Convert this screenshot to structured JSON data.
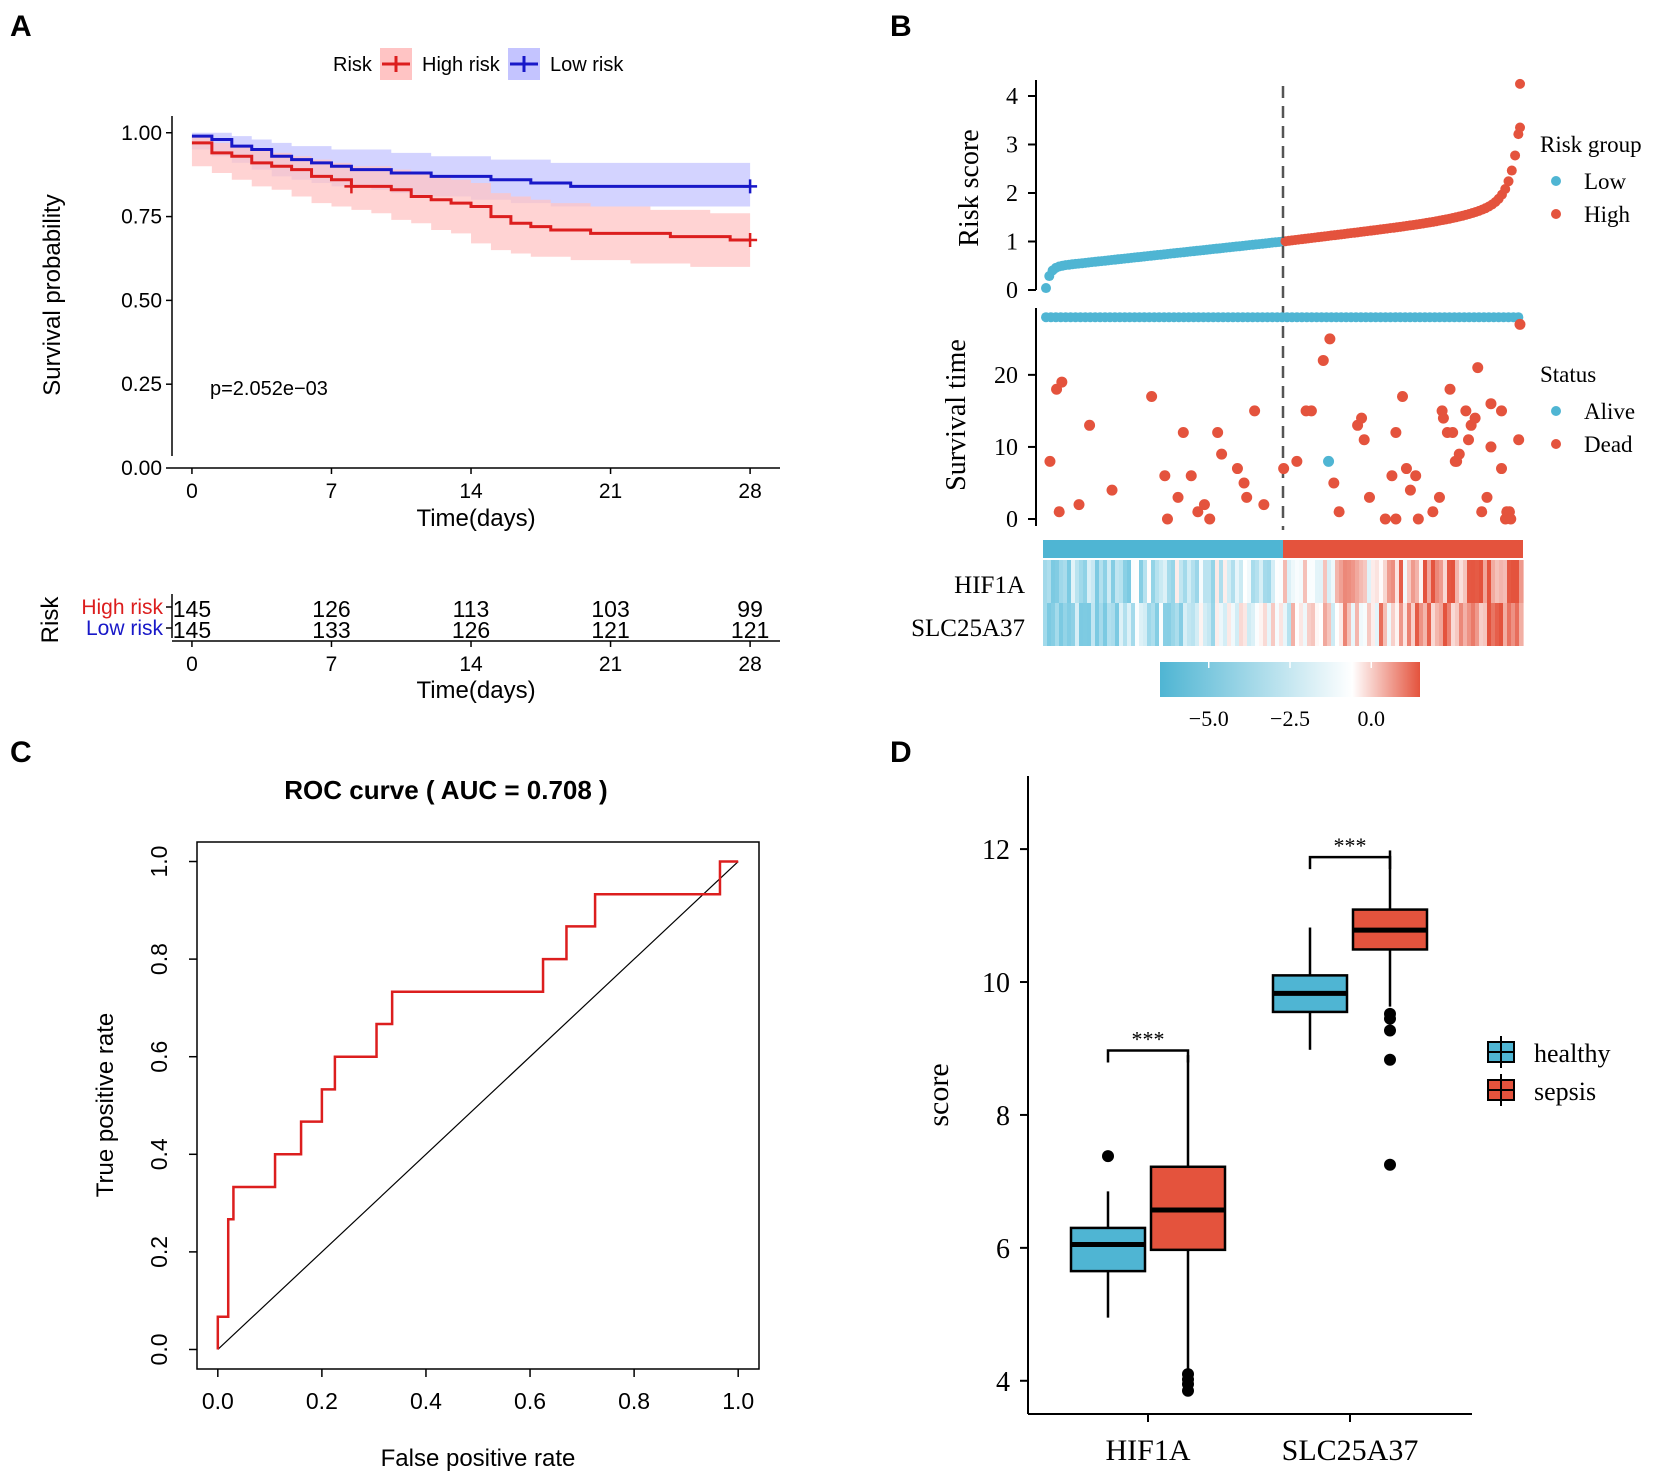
{
  "panels": {
    "A": "A",
    "B": "B",
    "C": "C",
    "D": "D"
  },
  "colors": {
    "high": "#dc1e1e",
    "low": "#1818c8",
    "teal": "#4fb5d3",
    "orange": "#e4533d",
    "black": "#000000"
  },
  "chart_data": [
    {
      "type": "line",
      "panel": "A",
      "subtype": "kaplan-meier",
      "xlabel": "Time(days)",
      "ylabel": "Survival probability",
      "xlim": [
        -1,
        29.5
      ],
      "ylim": [
        0,
        1.05
      ],
      "xticks": [
        "0",
        "7",
        "14",
        "21",
        "28"
      ],
      "yticks": [
        "0.00",
        "0.25",
        "0.50",
        "0.75",
        "1.00"
      ],
      "legend": {
        "title": "Risk",
        "entries": [
          "High risk",
          "Low risk"
        ]
      },
      "pvalue": "p=2.052e−03",
      "series": [
        {
          "name": "High risk",
          "color": "#dc1e1e",
          "x": [
            0,
            1,
            2,
            3,
            4,
            5,
            6,
            7,
            8,
            9,
            10,
            11,
            12,
            13,
            14,
            15,
            16,
            17,
            18,
            19,
            20,
            21,
            22,
            23,
            24,
            25,
            26,
            27,
            28
          ],
          "y": [
            0.97,
            0.94,
            0.93,
            0.91,
            0.9,
            0.89,
            0.87,
            0.86,
            0.84,
            0.84,
            0.83,
            0.81,
            0.8,
            0.79,
            0.78,
            0.75,
            0.73,
            0.72,
            0.71,
            0.71,
            0.7,
            0.7,
            0.7,
            0.7,
            0.69,
            0.69,
            0.69,
            0.68,
            0.68
          ],
          "lower": [
            0.94,
            0.9,
            0.88,
            0.86,
            0.84,
            0.83,
            0.81,
            0.79,
            0.78,
            0.77,
            0.76,
            0.74,
            0.73,
            0.71,
            0.7,
            0.67,
            0.65,
            0.64,
            0.63,
            0.63,
            0.62,
            0.62,
            0.62,
            0.61,
            0.61,
            0.61,
            0.6,
            0.6,
            0.6
          ],
          "upper": [
            0.99,
            0.97,
            0.96,
            0.95,
            0.94,
            0.93,
            0.92,
            0.91,
            0.9,
            0.9,
            0.89,
            0.88,
            0.87,
            0.86,
            0.85,
            0.82,
            0.81,
            0.8,
            0.79,
            0.79,
            0.78,
            0.78,
            0.78,
            0.77,
            0.77,
            0.77,
            0.76,
            0.76,
            0.76
          ]
        },
        {
          "name": "Low risk",
          "color": "#1818c8",
          "x": [
            0,
            1,
            2,
            3,
            4,
            5,
            6,
            7,
            8,
            9,
            10,
            11,
            12,
            13,
            14,
            15,
            16,
            17,
            18,
            19,
            20,
            21,
            22,
            23,
            24,
            25,
            26,
            27,
            28
          ],
          "y": [
            0.99,
            0.98,
            0.96,
            0.95,
            0.93,
            0.92,
            0.91,
            0.9,
            0.89,
            0.89,
            0.88,
            0.88,
            0.87,
            0.87,
            0.87,
            0.86,
            0.86,
            0.85,
            0.85,
            0.84,
            0.84,
            0.84,
            0.84,
            0.84,
            0.84,
            0.84,
            0.84,
            0.84,
            0.84
          ],
          "lower": [
            0.97,
            0.95,
            0.93,
            0.91,
            0.89,
            0.87,
            0.86,
            0.85,
            0.84,
            0.84,
            0.83,
            0.82,
            0.81,
            0.81,
            0.81,
            0.8,
            0.8,
            0.79,
            0.79,
            0.78,
            0.78,
            0.78,
            0.78,
            0.78,
            0.78,
            0.78,
            0.78,
            0.78,
            0.78
          ],
          "upper": [
            1.0,
            1.0,
            0.99,
            0.98,
            0.97,
            0.96,
            0.96,
            0.95,
            0.95,
            0.95,
            0.94,
            0.94,
            0.93,
            0.93,
            0.93,
            0.92,
            0.92,
            0.92,
            0.91,
            0.91,
            0.91,
            0.91,
            0.91,
            0.91,
            0.91,
            0.91,
            0.91,
            0.91,
            0.91
          ]
        }
      ],
      "censor_marks": [
        {
          "series": "High risk",
          "x": [
            8,
            28
          ],
          "y": [
            0.84,
            0.68
          ]
        },
        {
          "series": "Low risk",
          "x": [
            28
          ],
          "y": [
            0.84
          ]
        }
      ],
      "risk_table": {
        "title": "Risk",
        "xlabel": "Time(days)",
        "times": [
          "0",
          "7",
          "14",
          "21",
          "28"
        ],
        "rows": [
          {
            "label": "High risk",
            "values": [
              "145",
              "126",
              "113",
              "103",
              "99"
            ]
          },
          {
            "label": "Low risk",
            "values": [
              "145",
              "133",
              "126",
              "121",
              "121"
            ]
          }
        ]
      }
    },
    {
      "type": "scatter",
      "panel": "B",
      "subtype": "risk-score-distribution",
      "ylabel": "Risk score",
      "yticks": [
        "0",
        "1",
        "2",
        "3",
        "4"
      ],
      "ylim": [
        0,
        4.3
      ],
      "cutoff": 1.0,
      "n_patients": 290,
      "low_count": 145,
      "legend": {
        "title": "Risk group",
        "entries": [
          "Low",
          "High"
        ]
      }
    },
    {
      "type": "scatter",
      "panel": "B",
      "subtype": "survival-status",
      "ylabel": "Survival time",
      "yticks": [
        "0",
        "10",
        "20"
      ],
      "ylim": [
        0,
        29
      ],
      "legend": {
        "title": "Status",
        "entries": [
          "Alive",
          "Dead"
        ]
      },
      "alive_time": 28,
      "dead_points": [
        [
          3,
          8
        ],
        [
          8,
          18
        ],
        [
          12,
          19
        ],
        [
          10,
          1
        ],
        [
          25,
          2
        ],
        [
          33,
          13
        ],
        [
          50,
          4
        ],
        [
          80,
          17
        ],
        [
          90,
          6
        ],
        [
          92,
          0
        ],
        [
          100,
          3
        ],
        [
          104,
          12
        ],
        [
          110,
          6
        ],
        [
          115,
          1
        ],
        [
          120,
          2
        ],
        [
          124,
          0
        ],
        [
          130,
          12
        ],
        [
          133,
          9
        ],
        [
          145,
          7
        ],
        [
          150,
          5
        ],
        [
          152,
          3
        ],
        [
          158,
          15
        ],
        [
          165,
          2
        ],
        [
          180,
          7
        ],
        [
          190,
          8
        ],
        [
          197,
          15
        ],
        [
          201,
          15
        ],
        [
          210,
          22
        ],
        [
          215,
          25
        ],
        [
          218,
          5
        ],
        [
          222,
          1
        ],
        [
          236,
          13
        ],
        [
          239,
          14
        ],
        [
          241,
          11
        ],
        [
          245,
          3
        ],
        [
          257,
          0
        ],
        [
          262,
          6
        ],
        [
          265,
          12
        ],
        [
          265,
          0
        ],
        [
          270,
          17
        ],
        [
          273,
          7
        ],
        [
          276,
          4
        ],
        [
          280,
          6
        ],
        [
          282,
          0
        ],
        [
          293,
          1
        ],
        [
          298,
          3
        ],
        [
          300,
          15
        ],
        [
          301,
          14
        ],
        [
          304,
          12
        ],
        [
          306,
          18
        ],
        [
          308,
          12
        ],
        [
          310,
          8
        ],
        [
          311,
          8
        ],
        [
          313,
          9
        ],
        [
          318,
          15
        ],
        [
          320,
          11
        ],
        [
          322,
          13
        ],
        [
          325,
          14
        ],
        [
          327,
          21
        ],
        [
          330,
          1
        ],
        [
          334,
          3
        ],
        [
          337,
          10
        ],
        [
          337,
          16
        ],
        [
          345,
          7
        ],
        [
          345,
          15
        ],
        [
          348,
          0
        ],
        [
          349,
          1
        ],
        [
          351,
          1
        ],
        [
          352,
          0
        ],
        [
          358,
          11
        ],
        [
          359,
          27
        ]
      ],
      "alive_points": [
        [
          214,
          8
        ]
      ]
    },
    {
      "type": "heatmap",
      "panel": "B",
      "genes": [
        "HIF1A",
        "SLC25A37"
      ],
      "legend_ticks": [
        "−5.0",
        "−2.5",
        "0.0"
      ],
      "legend_range": [
        -6.5,
        1.5
      ]
    },
    {
      "type": "line",
      "panel": "C",
      "subtype": "roc",
      "title": "ROC curve ( AUC =  0.708 )",
      "xlabel": "False positive rate",
      "ylabel": "True positive rate",
      "xlim": [
        -0.04,
        1.04
      ],
      "ylim": [
        -0.04,
        1.04
      ],
      "xticks": [
        "0.0",
        "0.2",
        "0.4",
        "0.6",
        "0.8",
        "1.0"
      ],
      "yticks": [
        "0.0",
        "0.2",
        "0.4",
        "0.6",
        "0.8",
        "1.0"
      ],
      "auc": 0.708,
      "roc_points": [
        [
          0,
          0
        ],
        [
          0,
          0.067
        ],
        [
          0.02,
          0.067
        ],
        [
          0.02,
          0.267
        ],
        [
          0.03,
          0.267
        ],
        [
          0.03,
          0.333
        ],
        [
          0.11,
          0.333
        ],
        [
          0.11,
          0.4
        ],
        [
          0.16,
          0.4
        ],
        [
          0.16,
          0.467
        ],
        [
          0.2,
          0.467
        ],
        [
          0.2,
          0.533
        ],
        [
          0.225,
          0.533
        ],
        [
          0.225,
          0.6
        ],
        [
          0.305,
          0.6
        ],
        [
          0.305,
          0.667
        ],
        [
          0.335,
          0.667
        ],
        [
          0.335,
          0.733
        ],
        [
          0.625,
          0.733
        ],
        [
          0.625,
          0.8
        ],
        [
          0.67,
          0.8
        ],
        [
          0.67,
          0.867
        ],
        [
          0.725,
          0.867
        ],
        [
          0.725,
          0.933
        ],
        [
          0.965,
          0.933
        ],
        [
          0.965,
          1.0
        ],
        [
          1.0,
          1.0
        ]
      ],
      "diagonal": [
        [
          0,
          0
        ],
        [
          1,
          1
        ]
      ]
    },
    {
      "type": "bar",
      "panel": "D",
      "subtype": "boxplot",
      "ylabel": "score",
      "categories": [
        "HIF1A",
        "SLC25A37"
      ],
      "ylim": [
        3.5,
        13.1
      ],
      "yticks": [
        "4",
        "6",
        "8",
        "10",
        "12"
      ],
      "legend": {
        "entries": [
          "healthy",
          "sepsis"
        ]
      },
      "significance": [
        "***",
        "***"
      ],
      "series": [
        {
          "name": "healthy",
          "color": "#4fb5d3",
          "boxes": [
            {
              "q1": 5.65,
              "median": 6.05,
              "q3": 6.3,
              "whisker_low": 4.95,
              "whisker_high": 6.85,
              "outliers": [
                7.38
              ]
            },
            {
              "q1": 9.55,
              "median": 9.83,
              "q3": 10.1,
              "whisker_low": 8.98,
              "whisker_high": 10.82,
              "outliers": []
            }
          ]
        },
        {
          "name": "sepsis",
          "color": "#e4533d",
          "boxes": [
            {
              "q1": 5.97,
              "median": 6.57,
              "q3": 7.22,
              "whisker_low": 4.15,
              "whisker_high": 8.9,
              "outliers": [
                3.85,
                3.95,
                4.02,
                4.1
              ]
            },
            {
              "q1": 10.49,
              "median": 10.78,
              "q3": 11.09,
              "whisker_low": 9.63,
              "whisker_high": 11.98,
              "outliers": [
                9.45,
                9.52,
                9.27,
                8.83,
                7.25
              ]
            }
          ]
        }
      ]
    }
  ]
}
